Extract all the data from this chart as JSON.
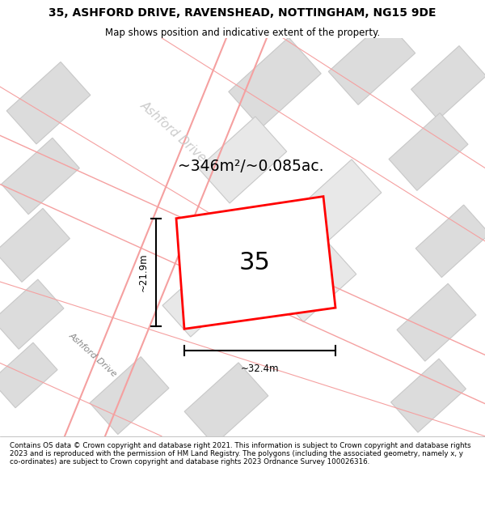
{
  "title_line1": "35, ASHFORD DRIVE, RAVENSHEAD, NOTTINGHAM, NG15 9DE",
  "title_line2": "Map shows position and indicative extent of the property.",
  "area_text": "~346m²/~0.085ac.",
  "number_label": "35",
  "dim_width": "~32.4m",
  "dim_height": "~21.9m",
  "road_label": "Ashford Drive",
  "road_label2": "Ashford Drive",
  "copyright_text": "Contains OS data © Crown copyright and database right 2021. This information is subject to Crown copyright and database rights 2023 and is reproduced with the permission of HM Land Registry. The polygons (including the associated geometry, namely x, y co-ordinates) are subject to Crown copyright and database rights 2023 Ordnance Survey 100026316.",
  "bg_color": "#f0eeee",
  "map_bg": "#f0eeee",
  "building_fill": "#dcdcdc",
  "building_edge": "#c8c8c8",
  "road_pink": "#f5a0a0",
  "property_fill": "#ffffff",
  "property_edge": "#ff0000",
  "title_bg": "#ffffff",
  "footer_bg": "#ffffff"
}
